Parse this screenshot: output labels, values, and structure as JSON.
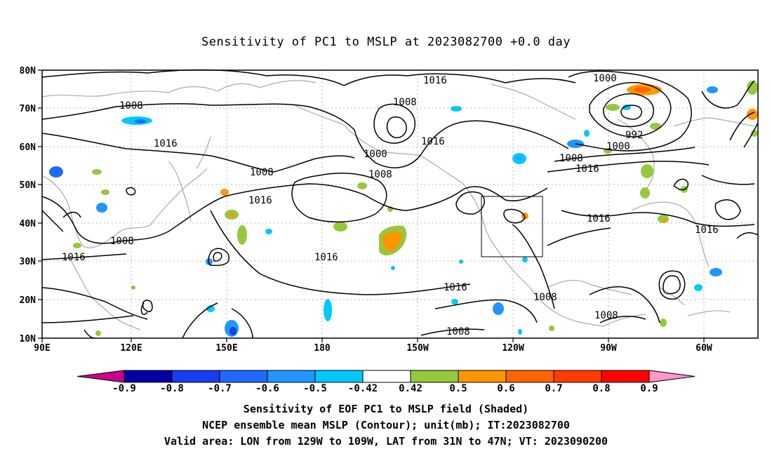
{
  "title": "Sensitivity of PC1 to MSLP at 2023082700 +0.0 day",
  "lat_labels": [
    "80N",
    "70N",
    "60N",
    "50N",
    "40N",
    "30N",
    "20N",
    "10N"
  ],
  "lon_labels": [
    "90E",
    "120E",
    "150E",
    "180",
    "150W",
    "120W",
    "90W",
    "60W"
  ],
  "contour_labels": [
    {
      "text": "1016"
    },
    {
      "text": "1008"
    },
    {
      "text": "1000"
    },
    {
      "text": "1008"
    },
    {
      "text": "1008"
    },
    {
      "text": "1016"
    },
    {
      "text": "1008"
    },
    {
      "text": "1000"
    },
    {
      "text": "992"
    },
    {
      "text": "1000"
    },
    {
      "text": "1008"
    },
    {
      "text": "1016"
    },
    {
      "text": "1016"
    },
    {
      "text": "1016"
    },
    {
      "text": "1008"
    },
    {
      "text": "1016"
    },
    {
      "text": "1016"
    },
    {
      "text": "1016"
    },
    {
      "text": "1016"
    },
    {
      "text": "1008"
    },
    {
      "text": "1008"
    },
    {
      "text": "1008"
    },
    {
      "text": "1016"
    }
  ],
  "colorbar": {
    "ticks": [
      "-0.9",
      "-0.8",
      "-0.7",
      "-0.6",
      "-0.5",
      "-0.42",
      "0.42",
      "0.5",
      "0.6",
      "0.7",
      "0.8",
      "0.9"
    ],
    "colors": [
      "#0000a0",
      "#1a3cf0",
      "#1e6aff",
      "#1f96ff",
      "#00c8ff",
      "#ffffff",
      "#96c83c",
      "#ff9600",
      "#ff6400",
      "#ff3c00",
      "#ff0000"
    ],
    "low_color": "#c8008c",
    "high_color": "#ff96c8"
  },
  "valid_box": {
    "lon_from": "129W",
    "lon_to": "109W",
    "lat_from": "31N",
    "lat_to": "47N"
  },
  "footer": {
    "line1": "Sensitivity of EOF PC1 to MSLP field (Shaded)",
    "line2": "NCEP ensemble mean MSLP (Contour); unit(mb); IT:2023082700",
    "line3": "Valid area: LON from 129W to 109W, LAT from 31N to 47N; VT: 2023090200"
  }
}
